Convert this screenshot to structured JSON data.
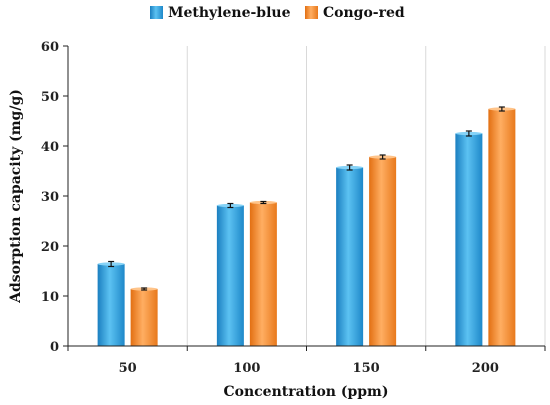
{
  "chart_data": {
    "type": "bar",
    "xlabel": "Concentration (ppm)",
    "ylabel": "Adsorption capacity (mg/g)",
    "categories": [
      "50",
      "100",
      "150",
      "200"
    ],
    "ylim": [
      0,
      60
    ],
    "yticks": [
      0,
      10,
      20,
      30,
      40,
      50,
      60
    ],
    "grid": "vertical",
    "legend": "top-center",
    "series": [
      {
        "name": "Methylene-blue",
        "color": "#2FA4E0",
        "values": [
          16.4,
          28.1,
          35.7,
          42.5
        ],
        "errors": [
          0.5,
          0.4,
          0.5,
          0.5
        ]
      },
      {
        "name": "Congo-red",
        "color": "#F7892C",
        "values": [
          11.4,
          28.7,
          37.8,
          47.4
        ],
        "errors": [
          0.2,
          0.2,
          0.4,
          0.4
        ]
      }
    ]
  }
}
